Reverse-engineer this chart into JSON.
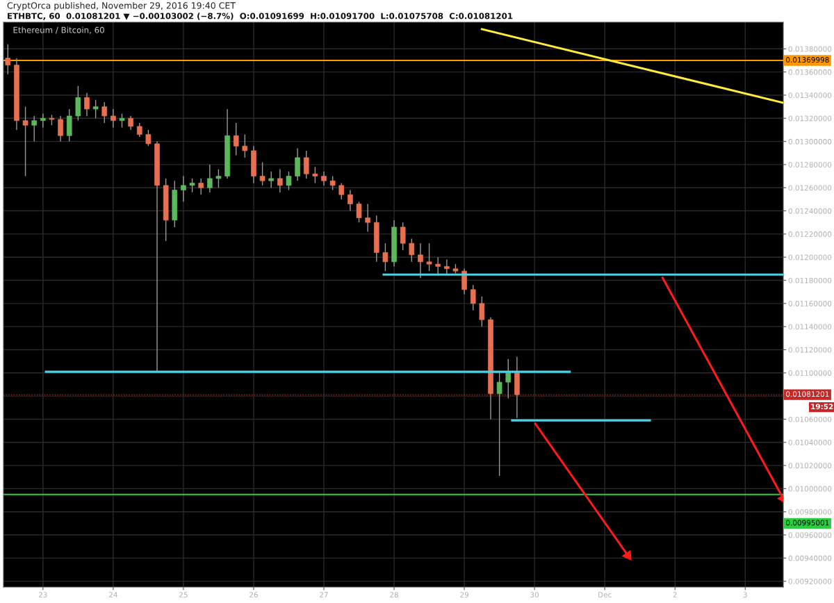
{
  "chart_data": {
    "type": "candlestick",
    "title": "Ethereum / Bitcoin, 60",
    "subtitle": "ETHBTC, 60  0.01081201 ▼ −0.00103002 (−8.7%)  O:0.01091699  H:0.01091700  L:0.01075708  C:0.01081201",
    "annotations": [
      "CryptOrca published, November 29, 2016 19:40 CET",
      "19:52",
      "0.00995001"
    ],
    "x": [
      "2016-11-22T12:00",
      "2016-11-22T15:00",
      "2016-11-22T18:00",
      "2016-11-22T21:00",
      "2016-11-23T00:00",
      "2016-11-23T03:00",
      "2016-11-23T06:00",
      "2016-11-23T09:00",
      "2016-11-23T12:00",
      "2016-11-23T15:00",
      "2016-11-23T18:00",
      "2016-11-23T21:00",
      "2016-11-24T00:00",
      "2016-11-24T03:00",
      "2016-11-24T06:00",
      "2016-11-24T09:00",
      "2016-11-24T12:00",
      "2016-11-24T15:00",
      "2016-11-24T18:00",
      "2016-11-24T21:00",
      "2016-11-25T00:00",
      "2016-11-25T03:00",
      "2016-11-25T06:00",
      "2016-11-25T09:00",
      "2016-11-25T12:00",
      "2016-11-25T15:00",
      "2016-11-25T18:00",
      "2016-11-25T21:00",
      "2016-11-26T00:00",
      "2016-11-26T03:00",
      "2016-11-26T06:00",
      "2016-11-26T09:00",
      "2016-11-26T12:00",
      "2016-11-26T15:00",
      "2016-11-26T18:00",
      "2016-11-26T21:00",
      "2016-11-27T00:00",
      "2016-11-27T03:00",
      "2016-11-27T06:00",
      "2016-11-27T09:00",
      "2016-11-27T12:00",
      "2016-11-27T15:00",
      "2016-11-27T18:00",
      "2016-11-27T21:00",
      "2016-11-28T00:00",
      "2016-11-28T03:00",
      "2016-11-28T06:00",
      "2016-11-28T09:00",
      "2016-11-28T12:00",
      "2016-11-28T15:00",
      "2016-11-28T18:00",
      "2016-11-28T21:00",
      "2016-11-29T00:00",
      "2016-11-29T03:00",
      "2016-11-29T06:00",
      "2016-11-29T09:00",
      "2016-11-29T12:00",
      "2016-11-29T15:00",
      "2016-11-29T18:00"
    ],
    "ohlc": [
      [
        0.01372,
        0.01384,
        0.01358,
        0.01366
      ],
      [
        0.01366,
        0.01372,
        0.0131,
        0.01318
      ],
      [
        0.01318,
        0.0133,
        0.0127,
        0.01314
      ],
      [
        0.01314,
        0.01322,
        0.013,
        0.01318
      ],
      [
        0.01318,
        0.01324,
        0.01312,
        0.0132
      ],
      [
        0.0132,
        0.01323,
        0.01314,
        0.01319
      ],
      [
        0.01319,
        0.01322,
        0.013,
        0.01305
      ],
      [
        0.01305,
        0.01328,
        0.013,
        0.01322
      ],
      [
        0.01322,
        0.01348,
        0.01318,
        0.01338
      ],
      [
        0.01338,
        0.01342,
        0.01322,
        0.01328
      ],
      [
        0.01328,
        0.01336,
        0.0132,
        0.0133
      ],
      [
        0.0133,
        0.01334,
        0.01316,
        0.01322
      ],
      [
        0.01322,
        0.01328,
        0.01312,
        0.01318
      ],
      [
        0.01318,
        0.01324,
        0.01312,
        0.0132
      ],
      [
        0.0132,
        0.01322,
        0.0131,
        0.01313
      ],
      [
        0.01313,
        0.01316,
        0.01304,
        0.01306
      ],
      [
        0.01306,
        0.0131,
        0.01296,
        0.01298
      ],
      [
        0.01298,
        0.013,
        0.01101,
        0.01262
      ],
      [
        0.01262,
        0.01268,
        0.01214,
        0.01232
      ],
      [
        0.01232,
        0.01266,
        0.01226,
        0.01258
      ],
      [
        0.01258,
        0.0127,
        0.01248,
        0.01262
      ],
      [
        0.01262,
        0.01268,
        0.01256,
        0.01264
      ],
      [
        0.01264,
        0.01268,
        0.01254,
        0.0126
      ],
      [
        0.0126,
        0.0128,
        0.01256,
        0.01268
      ],
      [
        0.01268,
        0.01276,
        0.0126,
        0.0127
      ],
      [
        0.0127,
        0.01328,
        0.01268,
        0.01305
      ],
      [
        0.01305,
        0.01316,
        0.01288,
        0.01296
      ],
      [
        0.01296,
        0.01306,
        0.01286,
        0.01292
      ],
      [
        0.01292,
        0.01296,
        0.01264,
        0.0127
      ],
      [
        0.0127,
        0.01282,
        0.01262,
        0.01266
      ],
      [
        0.01266,
        0.01274,
        0.0126,
        0.01268
      ],
      [
        0.01268,
        0.01276,
        0.01256,
        0.01262
      ],
      [
        0.01262,
        0.01274,
        0.01258,
        0.0127
      ],
      [
        0.0127,
        0.01294,
        0.01266,
        0.01286
      ],
      [
        0.01286,
        0.01292,
        0.01268,
        0.01272
      ],
      [
        0.01272,
        0.01278,
        0.01264,
        0.0127
      ],
      [
        0.0127,
        0.01274,
        0.01262,
        0.01266
      ],
      [
        0.01266,
        0.0127,
        0.01258,
        0.01262
      ],
      [
        0.01262,
        0.01264,
        0.0125,
        0.01254
      ],
      [
        0.01254,
        0.01258,
        0.0124,
        0.01246
      ],
      [
        0.01246,
        0.01248,
        0.0123,
        0.01234
      ],
      [
        0.01234,
        0.01246,
        0.01222,
        0.0123
      ],
      [
        0.0123,
        0.01236,
        0.01196,
        0.01204
      ],
      [
        0.01204,
        0.01212,
        0.01188,
        0.01196
      ],
      [
        0.01196,
        0.01232,
        0.01192,
        0.01226
      ],
      [
        0.01226,
        0.0123,
        0.01206,
        0.01212
      ],
      [
        0.01212,
        0.01216,
        0.01196,
        0.01202
      ],
      [
        0.01202,
        0.01212,
        0.01182,
        0.01196
      ],
      [
        0.01196,
        0.01212,
        0.01188,
        0.01194
      ],
      [
        0.01194,
        0.012,
        0.01184,
        0.01192
      ],
      [
        0.01192,
        0.01198,
        0.01184,
        0.0119
      ],
      [
        0.0119,
        0.01194,
        0.01186,
        0.01188
      ],
      [
        0.01188,
        0.0119,
        0.01168,
        0.01172
      ],
      [
        0.01172,
        0.01176,
        0.01154,
        0.0116
      ],
      [
        0.0116,
        0.01166,
        0.0114,
        0.01146
      ],
      [
        0.01146,
        0.01148,
        0.0106,
        0.01082
      ],
      [
        0.01082,
        0.011,
        0.01011,
        0.01092
      ],
      [
        0.01092,
        0.01112,
        0.01078,
        0.011
      ],
      [
        0.011,
        0.01114,
        0.01061,
        0.010812
      ]
    ],
    "series": [
      {
        "type": "line",
        "color": "#ffeb3b",
        "x": [
          "2016-11-29T06:00",
          "2016-12-03T13:00"
        ],
        "values": [
          0.01397,
          0.013334
        ]
      },
      {
        "type": "line",
        "color": "#4dd0e1",
        "x": [
          "2016-11-27T20:25",
          "2016-12-03T13:00"
        ],
        "values": [
          0.01185,
          0.01185
        ]
      },
      {
        "type": "line",
        "color": "#4dd0e1",
        "x": [
          "2016-11-23T01:00",
          "2016-11-30T12:00"
        ],
        "values": [
          0.01101,
          0.01101
        ]
      },
      {
        "type": "line",
        "color": "#4dd0e1",
        "x": [
          "2016-11-29T16:20",
          "2016-12-01T15:25"
        ],
        "values": [
          0.01059,
          0.01059
        ]
      },
      {
        "type": "line",
        "color": "#ff1a1a",
        "marker": "triangle",
        "x": [
          "2016-12-01T19:45",
          "2016-12-03T13:00"
        ],
        "values": [
          0.011822,
          0.009914
        ]
      },
      {
        "type": "line",
        "color": "#ff1a1a",
        "marker": "triangle",
        "x": [
          "2016-11-30T00:15",
          "2016-12-01T07:55"
        ],
        "values": [
          0.010562,
          0.009422
        ]
      }
    ],
    "ref_lines": [
      {
        "axis": "y",
        "value": 0.01369998,
        "label": "0.01369998",
        "color": "#ff9800",
        "line_style": "solid"
      },
      {
        "axis": "y",
        "value": 0.01081201,
        "label": "0.01081201",
        "color": "#c62828",
        "line_style": "dotted"
      },
      {
        "axis": "y",
        "value": 0.00995001,
        "color": "#2ecc40",
        "line_style": "solid"
      }
    ],
    "xlim": [
      "2016-11-22T10:30",
      "2016-12-03T13:00"
    ],
    "xticks": [
      {
        "value": "2016-11-23",
        "label": "23"
      },
      {
        "value": "2016-11-24",
        "label": "24"
      },
      {
        "value": "2016-11-25",
        "label": "25"
      },
      {
        "value": "2016-11-26",
        "label": "26"
      },
      {
        "value": "2016-11-27",
        "label": "27"
      },
      {
        "value": "2016-11-28",
        "label": "28"
      },
      {
        "value": "2016-11-29",
        "label": "29"
      },
      {
        "value": "2016-11-30",
        "label": "30"
      },
      {
        "value": "2016-12-01",
        "label": "Dec"
      },
      {
        "value": "2016-12-02",
        "label": "2"
      },
      {
        "value": "2016-12-03",
        "label": "3"
      }
    ],
    "ylim": [
      0.00915,
      0.01403
    ],
    "yticks": [
      {
        "value": 0.0092,
        "label": "0.00920000"
      },
      {
        "value": 0.0094,
        "label": "0.00940000"
      },
      {
        "value": 0.0096,
        "label": "0.00960000"
      },
      {
        "value": 0.0098,
        "label": "0.00980000"
      },
      {
        "value": 0.01,
        "label": "0.01000000"
      },
      {
        "value": 0.0102,
        "label": "0.01020000"
      },
      {
        "value": 0.0104,
        "label": "0.01040000"
      },
      {
        "value": 0.0106,
        "label": "0.01060000"
      },
      {
        "value": 0.0108,
        "label": null
      },
      {
        "value": 0.011,
        "label": "0.01100000"
      },
      {
        "value": 0.0112,
        "label": "0.01120000"
      },
      {
        "value": 0.0114,
        "label": "0.01140000"
      },
      {
        "value": 0.0116,
        "label": "0.01160000"
      },
      {
        "value": 0.0118,
        "label": "0.01180000"
      },
      {
        "value": 0.012,
        "label": "0.01200000"
      },
      {
        "value": 0.0122,
        "label": "0.01220000"
      },
      {
        "value": 0.0124,
        "label": "0.01240000"
      },
      {
        "value": 0.0126,
        "label": "0.01260000"
      },
      {
        "value": 0.0128,
        "label": "0.01280000"
      },
      {
        "value": 0.013,
        "label": "0.01300000"
      },
      {
        "value": 0.0132,
        "label": "0.01320000"
      },
      {
        "value": 0.0134,
        "label": "0.01340000"
      },
      {
        "value": 0.0136,
        "label": "0.01360000"
      },
      {
        "value": 0.0138,
        "label": "0.01380000"
      }
    ],
    "grid": true
  }
}
